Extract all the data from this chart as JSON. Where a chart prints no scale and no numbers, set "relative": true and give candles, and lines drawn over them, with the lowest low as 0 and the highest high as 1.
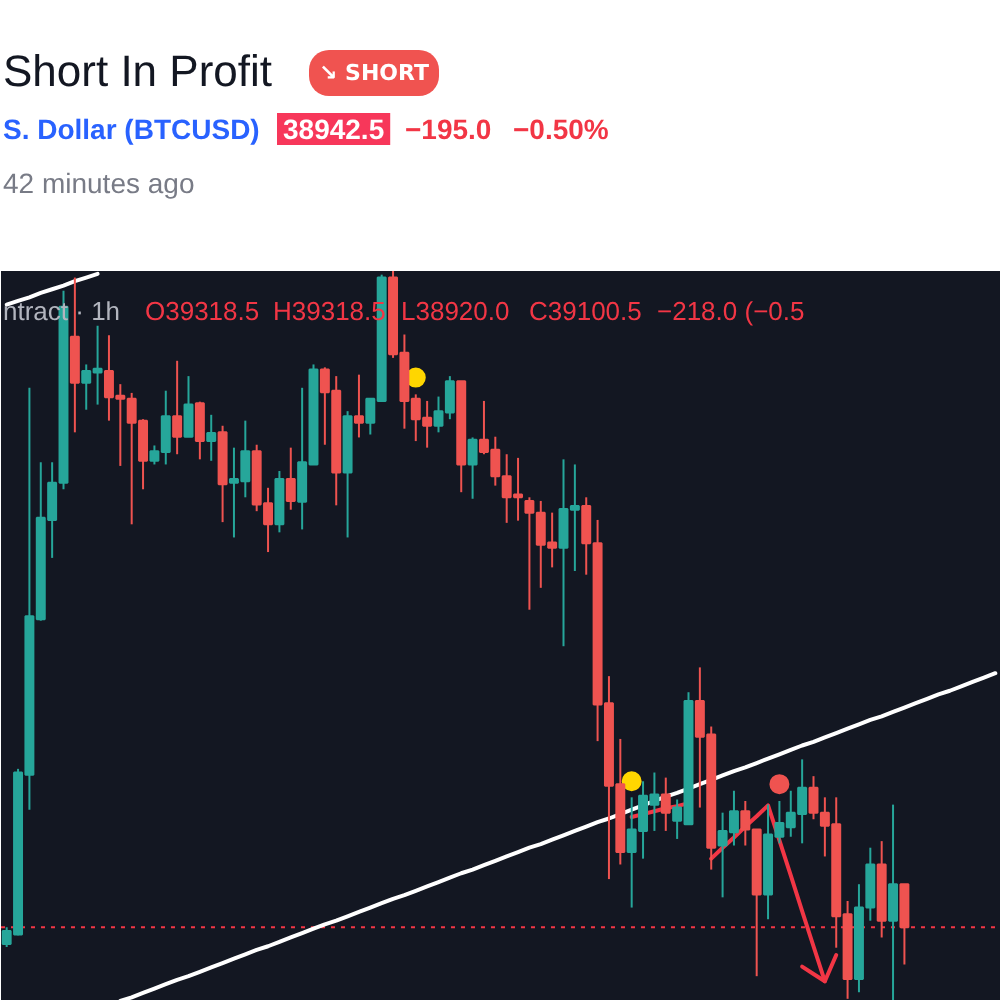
{
  "chart_data": {
    "type": "candlestick",
    "title": "Short In Profit",
    "subtitle": "S. Dollar (BTCUSD)",
    "annotations": [
      "↘ SHORT",
      "38942.5",
      "−195.0",
      "−0.50%",
      "42 minutes ago",
      "ntract · 1h",
      "O39318.5",
      "H39318.5",
      "L38920.0",
      "C39100.5",
      "−218.0 (−0.5"
    ],
    "relative": true,
    "grid": false,
    "categories": [
      null,
      null,
      null,
      null,
      null,
      null,
      null,
      null,
      null,
      null,
      null,
      null,
      null,
      null,
      null,
      null,
      null,
      null,
      null,
      null,
      null,
      null,
      null,
      null,
      null,
      null,
      null,
      null,
      null,
      null,
      null,
      null,
      null,
      null,
      null,
      null,
      null,
      null,
      null,
      null,
      null,
      null,
      null,
      null,
      null,
      null,
      null,
      null,
      null,
      null,
      null,
      null,
      null,
      null,
      null,
      null,
      null,
      null,
      null,
      null,
      null,
      null,
      null,
      null,
      null,
      null,
      null,
      null,
      null,
      null,
      null,
      null,
      null,
      null,
      null,
      null,
      null,
      null,
      null,
      null,
      null,
      null,
      null,
      null,
      null,
      null,
      null,
      null
    ],
    "ohlc": [
      [
        0.078,
        0.101,
        0.074,
        0.096
      ],
      [
        0.091,
        0.318,
        0.09,
        0.313
      ],
      [
        0.31,
        0.84,
        0.262,
        0.527
      ],
      [
        0.523,
        0.738,
        0.521,
        0.662
      ],
      [
        0.659,
        0.738,
        0.607,
        0.71
      ],
      [
        0.71,
        0.973,
        0.701,
        0.951
      ],
      [
        0.91,
        0.991,
        0.779,
        0.847
      ],
      [
        0.847,
        0.872,
        0.81,
        0.863
      ],
      [
        0.861,
        0.925,
        0.817,
        0.866
      ],
      [
        0.863,
        0.912,
        0.795,
        0.827
      ],
      [
        0.829,
        0.845,
        0.733,
        0.825
      ],
      [
        0.825,
        0.833,
        0.653,
        0.792
      ],
      [
        0.795,
        0.797,
        0.701,
        0.74
      ],
      [
        0.74,
        0.761,
        0.735,
        0.753
      ],
      [
        0.752,
        0.836,
        0.735,
        0.801
      ],
      [
        0.801,
        0.877,
        0.749,
        0.773
      ],
      [
        0.773,
        0.856,
        0.773,
        0.817
      ],
      [
        0.819,
        0.821,
        0.742,
        0.767
      ],
      [
        0.767,
        0.803,
        0.74,
        0.778
      ],
      [
        0.779,
        0.788,
        0.656,
        0.708
      ],
      [
        0.71,
        0.758,
        0.635,
        0.715
      ],
      [
        0.712,
        0.795,
        0.69,
        0.753
      ],
      [
        0.753,
        0.762,
        0.671,
        0.68
      ],
      [
        0.682,
        0.703,
        0.615,
        0.653
      ],
      [
        0.653,
        0.726,
        0.642,
        0.715
      ],
      [
        0.715,
        0.758,
        0.673,
        0.685
      ],
      [
        0.684,
        0.84,
        0.646,
        0.738
      ],
      [
        0.735,
        0.872,
        0.735,
        0.865
      ],
      [
        0.865,
        0.868,
        0.762,
        0.834
      ],
      [
        0.836,
        0.856,
        0.679,
        0.724
      ],
      [
        0.724,
        0.808,
        0.635,
        0.801
      ],
      [
        0.801,
        0.858,
        0.772,
        0.792
      ],
      [
        0.792,
        0.825,
        0.776,
        0.825
      ],
      [
        0.822,
        0.995,
        0.822,
        0.991
      ],
      [
        0.991,
        1.0,
        0.881,
        0.886
      ],
      [
        0.888,
        0.913,
        0.784,
        0.822
      ],
      [
        0.825,
        0.831,
        0.767,
        0.797
      ],
      [
        0.799,
        0.822,
        0.758,
        0.788
      ],
      [
        0.788,
        0.828,
        0.779,
        0.808
      ],
      [
        0.806,
        0.856,
        0.797,
        0.849
      ],
      [
        0.849,
        0.849,
        0.697,
        0.735
      ],
      [
        0.735,
        0.772,
        0.688,
        0.769
      ],
      [
        0.769,
        0.822,
        0.749,
        0.752
      ],
      [
        0.755,
        0.773,
        0.706,
        0.719
      ],
      [
        0.719,
        0.749,
        0.655,
        0.69
      ],
      [
        0.694,
        0.744,
        0.658,
        0.69
      ],
      [
        0.685,
        0.69,
        0.536,
        0.669
      ],
      [
        0.669,
        0.685,
        0.566,
        0.625
      ],
      [
        0.628,
        0.669,
        0.594,
        0.621
      ],
      [
        0.621,
        0.742,
        0.486,
        0.674
      ],
      [
        0.673,
        0.735,
        0.589,
        0.678
      ],
      [
        0.678,
        0.69,
        0.584,
        0.627
      ],
      [
        0.627,
        0.659,
        0.356,
        0.406
      ],
      [
        0.408,
        0.445,
        0.167,
        0.295
      ],
      [
        0.297,
        0.359,
        0.187,
        0.204
      ],
      [
        0.204,
        0.279,
        0.128,
        0.235
      ],
      [
        0.233,
        0.301,
        0.195,
        0.281
      ],
      [
        0.269,
        0.313,
        0.233,
        0.283
      ],
      [
        0.283,
        0.306,
        0.233,
        0.258
      ],
      [
        0.247,
        0.276,
        0.222,
        0.265
      ],
      [
        0.242,
        0.423,
        0.242,
        0.411
      ],
      [
        0.411,
        0.457,
        0.265,
        0.362
      ],
      [
        0.365,
        0.376,
        0.18,
        0.21
      ],
      [
        0.213,
        0.258,
        0.142,
        0.233
      ],
      [
        0.231,
        0.288,
        0.213,
        0.26
      ],
      [
        0.26,
        0.274,
        0.213,
        0.235
      ],
      [
        0.235,
        0.235,
        0.034,
        0.146
      ],
      [
        0.146,
        0.269,
        0.112,
        0.228
      ],
      [
        0.225,
        0.274,
        0.216,
        0.244
      ],
      [
        0.238,
        0.288,
        0.225,
        0.258
      ],
      [
        0.256,
        0.331,
        0.216,
        0.292
      ],
      [
        0.292,
        0.308,
        0.249,
        0.258
      ],
      [
        0.258,
        0.279,
        0.198,
        0.24
      ],
      [
        0.242,
        0.279,
        0.073,
        0.116
      ],
      [
        0.119,
        0.137,
        0.003,
        0.03
      ],
      [
        0.03,
        0.16,
        0.012,
        0.128
      ],
      [
        0.128,
        0.21,
        0.11,
        0.187
      ],
      [
        0.187,
        0.219,
        0.087,
        0.11
      ],
      [
        0.11,
        0.269,
        0.0,
        0.16
      ],
      [
        0.16,
        0.16,
        0.05,
        0.101
      ],
      null,
      null,
      null,
      null,
      null,
      null,
      null,
      null
    ],
    "colors": [
      "#26a69a",
      "#26a69a",
      "#26a69a",
      "#26a69a",
      "#26a69a",
      "#26a69a",
      "#ef5350",
      "#26a69a",
      "#26a69a",
      "#ef5350",
      "#ef5350",
      "#ef5350",
      "#ef5350",
      "#26a69a",
      "#26a69a",
      "#ef5350",
      "#26a69a",
      "#ef5350",
      "#26a69a",
      "#ef5350",
      "#26a69a",
      "#26a69a",
      "#ef5350",
      "#ef5350",
      "#26a69a",
      "#ef5350",
      "#26a69a",
      "#26a69a",
      "#ef5350",
      "#ef5350",
      "#26a69a",
      "#ef5350",
      "#26a69a",
      "#26a69a",
      "#ef5350",
      "#ef5350",
      "#ef5350",
      "#ef5350",
      "#26a69a",
      "#26a69a",
      "#ef5350",
      "#26a69a",
      "#ef5350",
      "#ef5350",
      "#ef5350",
      "#ef5350",
      "#ef5350",
      "#ef5350",
      "#ef5350",
      "#26a69a",
      "#26a69a",
      "#ef5350",
      "#ef5350",
      "#ef5350",
      "#ef5350",
      "#26a69a",
      "#26a69a",
      "#26a69a",
      "#ef5350",
      "#26a69a",
      "#26a69a",
      "#ef5350",
      "#ef5350",
      "#26a69a",
      "#26a69a",
      "#ef5350",
      "#ef5350",
      "#26a69a",
      "#26a69a",
      "#26a69a",
      "#26a69a",
      "#ef5350",
      "#ef5350",
      "#ef5350",
      "#ef5350",
      "#26a69a",
      "#26a69a",
      "#ef5350",
      "#26a69a",
      "#ef5350",
      null,
      null,
      null,
      null,
      null,
      null,
      null,
      null
    ],
    "series": [
      {
        "type": "line",
        "color": "#ffffff",
        "values": [
          0.954,
          0.959,
          0.964,
          0.97,
          0.975,
          0.98,
          0.986,
          0.991,
          0.996,
          null,
          null,
          null,
          null,
          null,
          null,
          null,
          null,
          null,
          null,
          null,
          null,
          null,
          null,
          null,
          null,
          null,
          null,
          null,
          null,
          null,
          null,
          null,
          null,
          null,
          null,
          null,
          null,
          null,
          null,
          null,
          null,
          null,
          null,
          null,
          null,
          null,
          null,
          null,
          null,
          null,
          null,
          null,
          null,
          null,
          null,
          null,
          null,
          null,
          null,
          null,
          null,
          null,
          null,
          null,
          null,
          null,
          null,
          null,
          null,
          null,
          null,
          null,
          null,
          null,
          null,
          null,
          null,
          null,
          null,
          null,
          null,
          null,
          null,
          null,
          null,
          null,
          null,
          null
        ]
      },
      {
        "type": "line",
        "color": "#ffffff",
        "values": [
          null,
          null,
          null,
          null,
          null,
          null,
          null,
          null,
          null,
          null,
          0.0,
          0.005,
          0.011,
          0.017,
          0.023,
          0.029,
          0.034,
          0.04,
          0.046,
          0.052,
          0.058,
          0.064,
          0.07,
          0.075,
          0.081,
          0.087,
          0.093,
          0.099,
          0.105,
          0.11,
          0.116,
          0.122,
          0.128,
          0.134,
          0.14,
          0.145,
          0.151,
          0.157,
          0.163,
          0.169,
          0.175,
          0.18,
          0.186,
          0.192,
          0.198,
          0.204,
          0.21,
          0.215,
          0.221,
          0.227,
          0.233,
          0.239,
          0.245,
          0.25,
          0.256,
          0.262,
          0.268,
          0.274,
          0.28,
          0.285,
          0.291,
          0.297,
          0.303,
          0.309,
          0.315,
          0.32,
          0.326,
          0.332,
          0.338,
          0.344,
          0.35,
          0.355,
          0.361,
          0.367,
          0.373,
          0.379,
          0.385,
          0.39,
          0.396,
          0.402,
          0.408,
          0.414,
          0.42,
          0.425,
          0.431,
          0.437,
          0.443,
          0.449
        ]
      },
      {
        "type": "line",
        "color": "#f23645",
        "values": [
          null,
          null,
          null,
          null,
          null,
          null,
          null,
          null,
          null,
          null,
          null,
          null,
          null,
          null,
          null,
          null,
          null,
          null,
          null,
          null,
          null,
          null,
          null,
          null,
          null,
          null,
          null,
          null,
          null,
          null,
          null,
          null,
          null,
          null,
          null,
          null,
          null,
          null,
          null,
          null,
          null,
          null,
          null,
          null,
          null,
          null,
          null,
          null,
          null,
          null,
          null,
          null,
          null,
          null,
          null,
          0.252,
          0.256,
          0.26,
          0.264,
          0.267,
          0.271,
          null,
          null,
          null,
          null,
          null,
          null,
          null,
          null,
          null,
          null,
          null,
          null,
          null,
          null,
          null,
          null,
          null,
          null,
          null,
          null,
          null,
          null,
          null,
          null,
          null,
          null,
          null
        ]
      },
      {
        "type": "line",
        "color": "#f23645",
        "values": [
          null,
          null,
          null,
          null,
          null,
          null,
          null,
          null,
          null,
          null,
          null,
          null,
          null,
          null,
          null,
          null,
          null,
          null,
          null,
          null,
          null,
          null,
          null,
          null,
          null,
          null,
          null,
          null,
          null,
          null,
          null,
          null,
          null,
          null,
          null,
          null,
          null,
          null,
          null,
          null,
          null,
          null,
          null,
          null,
          null,
          null,
          null,
          null,
          null,
          null,
          null,
          null,
          null,
          null,
          null,
          null,
          null,
          null,
          null,
          null,
          null,
          null,
          0.195,
          0.21,
          0.224,
          0.239,
          0.253,
          0.268,
          0.22,
          0.172,
          0.123,
          0.075,
          0.027,
          null,
          null,
          null,
          null,
          null,
          null,
          null,
          null,
          null,
          null,
          null,
          null,
          null,
          null,
          null
        ]
      },
      {
        "type": "line",
        "color": "#f23645",
        "values": [
          null,
          null,
          null,
          null,
          null,
          null,
          null,
          null,
          null,
          null,
          null,
          null,
          null,
          null,
          null,
          null,
          null,
          null,
          null,
          null,
          null,
          null,
          null,
          null,
          null,
          null,
          null,
          null,
          null,
          null,
          null,
          null,
          null,
          null,
          null,
          null,
          null,
          null,
          null,
          null,
          null,
          null,
          null,
          null,
          null,
          null,
          null,
          null,
          null,
          null,
          null,
          null,
          null,
          null,
          null,
          null,
          null,
          null,
          null,
          null,
          null,
          null,
          null,
          null,
          null,
          null,
          null,
          null,
          null,
          null,
          0.047,
          0.037,
          0.027,
          0.063,
          null,
          null,
          null,
          null,
          null,
          null,
          null,
          null,
          null,
          null,
          null,
          null,
          null,
          null
        ]
      },
      {
        "type": "scatter",
        "marker": "circle",
        "color": "#ffd600",
        "values": [
          null,
          null,
          null,
          null,
          null,
          null,
          null,
          null,
          null,
          null,
          null,
          null,
          null,
          null,
          null,
          null,
          null,
          null,
          null,
          null,
          null,
          null,
          null,
          null,
          null,
          null,
          null,
          null,
          null,
          null,
          null,
          null,
          null,
          null,
          null,
          null,
          0.854,
          null,
          null,
          null,
          null,
          null,
          null,
          null,
          null,
          null,
          null,
          null,
          null,
          null,
          null,
          null,
          null,
          null,
          null,
          0.301,
          null,
          null,
          null,
          null,
          null,
          null,
          null,
          null,
          null,
          null,
          null,
          null,
          null,
          null,
          null,
          null,
          null,
          null,
          null,
          null,
          null,
          null,
          null,
          null,
          null,
          null,
          null,
          null,
          null,
          null,
          null,
          null
        ]
      },
      {
        "type": "scatter",
        "marker": "circle",
        "color": "#ef5350",
        "values": [
          null,
          null,
          null,
          null,
          null,
          null,
          null,
          null,
          null,
          null,
          null,
          null,
          null,
          null,
          null,
          null,
          null,
          null,
          null,
          null,
          null,
          null,
          null,
          null,
          null,
          null,
          null,
          null,
          null,
          null,
          null,
          null,
          null,
          null,
          null,
          null,
          null,
          null,
          null,
          null,
          null,
          null,
          null,
          null,
          null,
          null,
          null,
          null,
          null,
          null,
          null,
          null,
          null,
          null,
          null,
          null,
          null,
          null,
          null,
          null,
          null,
          null,
          null,
          null,
          null,
          null,
          null,
          null,
          0.297,
          null,
          null,
          null,
          null,
          null,
          null,
          null,
          null,
          null,
          null,
          null,
          null,
          null,
          null,
          null,
          null,
          null,
          null,
          null
        ]
      }
    ],
    "ref_lines": [
      {
        "axis": "y",
        "value": 0.101,
        "color": "#f23645",
        "line_style": "dotted"
      }
    ]
  }
}
